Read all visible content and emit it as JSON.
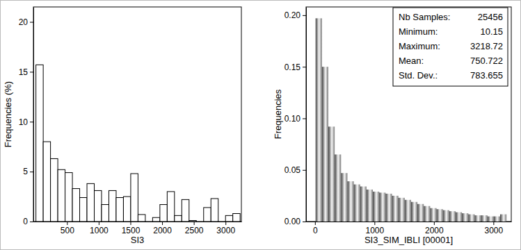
{
  "chart_data": [
    {
      "type": "histogram",
      "xlabel": "SI3",
      "ylabel": "Frequencies (%)",
      "bins": [
        10,
        125,
        240,
        355,
        470,
        585,
        700,
        815,
        930,
        1045,
        1160,
        1275,
        1390,
        1505,
        1620,
        1735,
        1850,
        1965,
        2080,
        2195,
        2310,
        2425,
        2540,
        2655,
        2770,
        2885,
        3000,
        3115,
        3230
      ],
      "values": [
        15.7,
        8.0,
        6.3,
        5.2,
        4.9,
        3.3,
        2.4,
        3.8,
        3.1,
        1.7,
        3.1,
        2.4,
        2.5,
        4.8,
        0.7,
        0,
        0.4,
        1.7,
        3.0,
        0.6,
        2.2,
        0.1,
        0,
        1.4,
        2.3,
        0,
        0.6,
        0.8
      ],
      "color": "#ffffff",
      "xlim": [
        -30,
        3250
      ],
      "xticks": [
        500,
        1000,
        1500,
        2000,
        2500,
        3000
      ],
      "ylim": [
        0,
        21.5
      ],
      "yticks": [
        0,
        5,
        10,
        15,
        20
      ]
    },
    {
      "type": "histogram",
      "xlabel": "SI3_SIM_IBLI [00001]",
      "ylabel": "Frequencies",
      "bins": [
        10,
        117,
        224,
        331,
        438,
        545,
        652,
        759,
        866,
        973,
        1080,
        1187,
        1294,
        1401,
        1508,
        1615,
        1722,
        1829,
        1936,
        2043,
        2150,
        2257,
        2364,
        2471,
        2578,
        2685,
        2792,
        2899,
        3006,
        3113,
        3220
      ],
      "values": [
        0.197,
        0.15,
        0.092,
        0.065,
        0.047,
        0.039,
        0.036,
        0.034,
        0.031,
        0.029,
        0.028,
        0.027,
        0.025,
        0.023,
        0.021,
        0.019,
        0.017,
        0.015,
        0.013,
        0.012,
        0.011,
        0.01,
        0.009,
        0.008,
        0.007,
        0.006,
        0.006,
        0.005,
        0.005,
        0.007
      ],
      "color": "#8c8c8c",
      "xlim": [
        -150,
        3300
      ],
      "xticks": [
        0,
        1000,
        2000,
        3000
      ],
      "ylim": [
        0,
        0.208
      ],
      "yticks": [
        {
          "value": 0,
          "label": "0.00"
        },
        {
          "value": 0.05,
          "label": "0.05"
        },
        {
          "value": 0.1,
          "label": "0.10"
        },
        {
          "value": 0.15,
          "label": "0.15"
        },
        {
          "value": 0.2,
          "label": "0.20"
        }
      ],
      "stats": [
        {
          "label": "Nb Samples:",
          "value": 25456
        },
        {
          "label": "Minimum:",
          "value": 10.15
        },
        {
          "label": "Maximum:",
          "value": 3218.72
        },
        {
          "label": "Mean:",
          "value": 750.722
        },
        {
          "label": "Std. Dev.:",
          "value": 783.655
        }
      ]
    }
  ]
}
